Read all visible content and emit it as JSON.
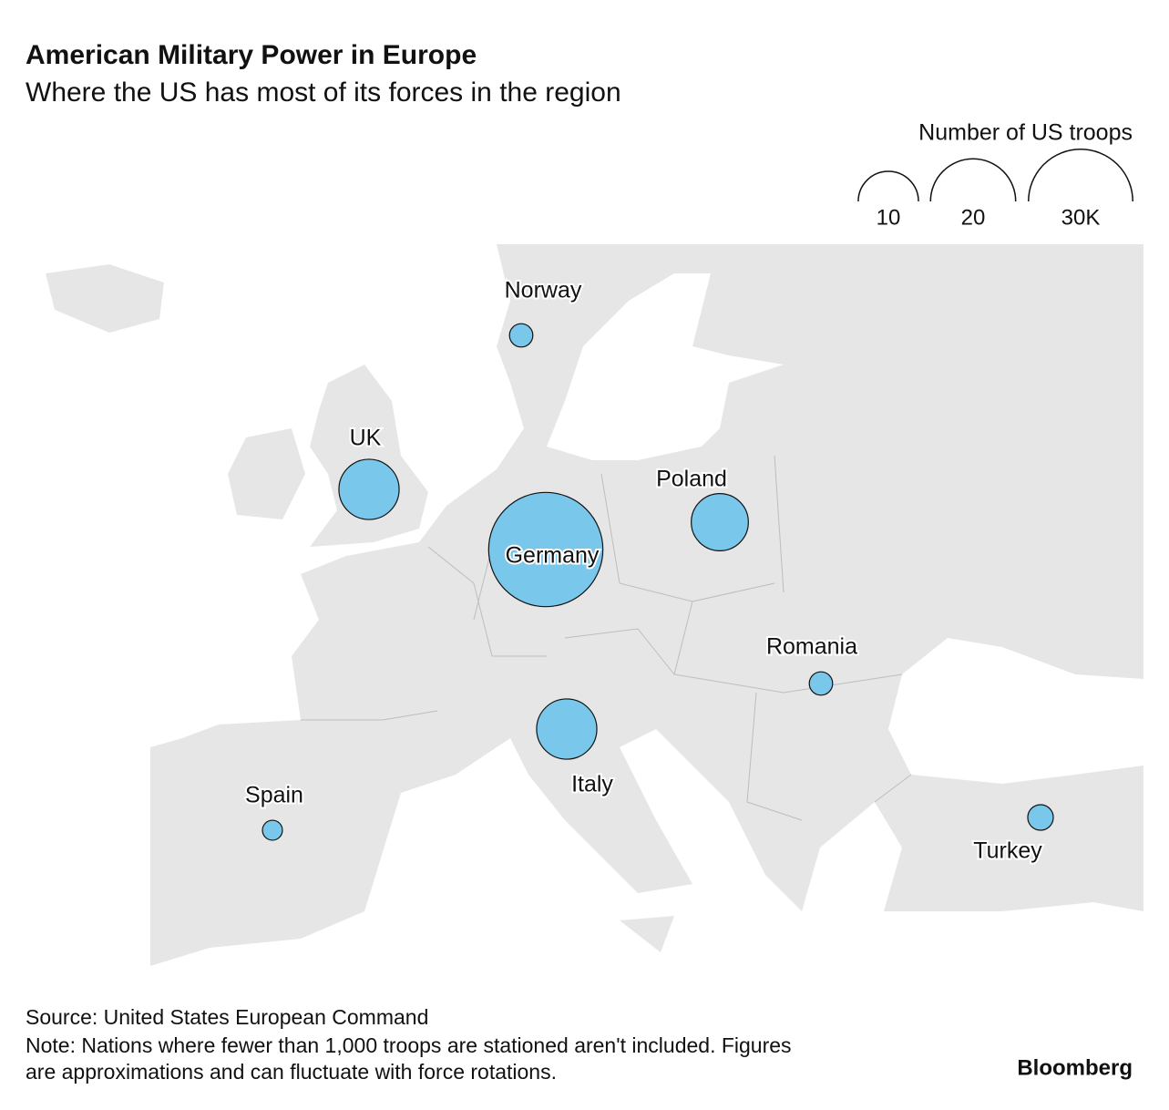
{
  "chart_data": {
    "type": "bubble",
    "title": "American Military Power in Europe",
    "subtitle": "Where the US has most of its forces in the region",
    "categories": [
      "Norway",
      "UK",
      "Germany",
      "Poland",
      "Italy",
      "Romania",
      "Spain",
      "Turkey"
    ],
    "values": [
      1.5,
      10,
      36,
      9,
      10,
      1.5,
      1.1,
      1.8
    ],
    "color": "#7ac7ec",
    "size_legend": {
      "title": "Number of US troops",
      "values": [
        10,
        20,
        {
          "value": 30,
          "label": "30K"
        }
      ]
    },
    "source": "Source: United States European Command",
    "note": [
      "Note: Nations where fewer than 1,000 troops are stationed aren't included. Figures",
      "are approximations and can fluctuate with force rotations."
    ],
    "brand": "Bloomberg"
  }
}
